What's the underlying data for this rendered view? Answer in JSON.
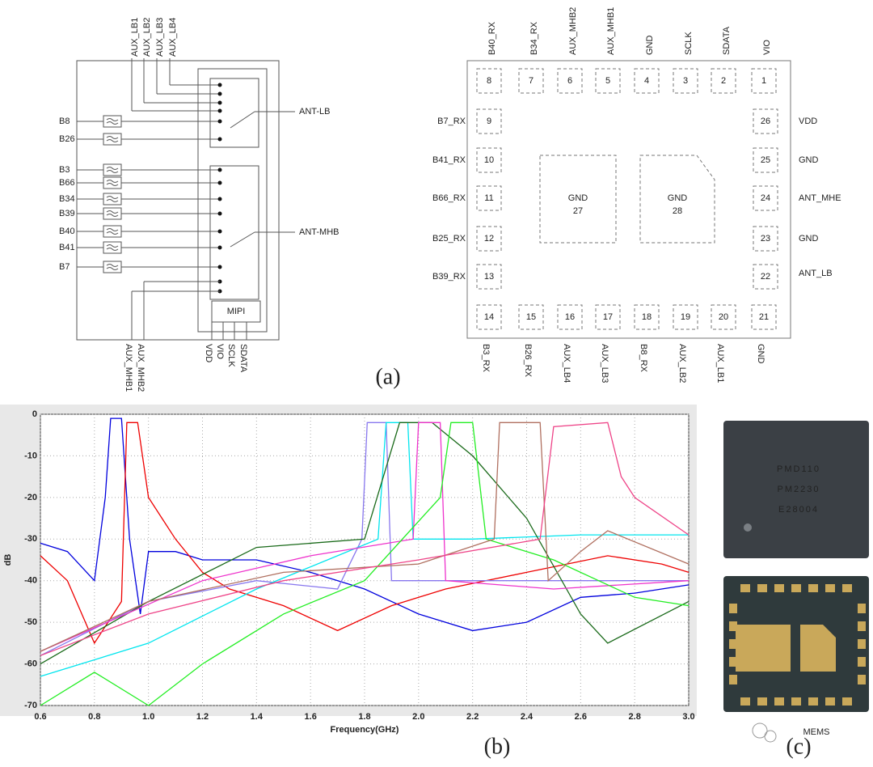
{
  "figure_a": {
    "block": {
      "top_labels": [
        "AUX_LB1",
        "AUX_LB2",
        "AUX_LB3",
        "AUX_LB4"
      ],
      "left_labels": [
        "B8",
        "B26",
        "B3",
        "B66",
        "B34",
        "B39",
        "B40",
        "B41",
        "B7"
      ],
      "right_labels": [
        "ANT-LB",
        "ANT-MHB"
      ],
      "controller": "MIPI",
      "bottom_labels": [
        "AUX_MHB1",
        "AUX_MHB2",
        "VDD",
        "VIO",
        "SCLK",
        "SDATA"
      ]
    },
    "pinout": {
      "top": [
        {
          "pin": 8,
          "label": "B40_RX"
        },
        {
          "pin": 7,
          "label": "B34_RX"
        },
        {
          "pin": 6,
          "label": "AUX_MHB2"
        },
        {
          "pin": 5,
          "label": "AUX_MHB1"
        },
        {
          "pin": 4,
          "label": "GND"
        },
        {
          "pin": 3,
          "label": "SCLK"
        },
        {
          "pin": 2,
          "label": "SDATA"
        },
        {
          "pin": 1,
          "label": "VIO"
        }
      ],
      "left": [
        {
          "pin": 9,
          "label": "B7_RX"
        },
        {
          "pin": 10,
          "label": "B41_RX"
        },
        {
          "pin": 11,
          "label": "B66_RX"
        },
        {
          "pin": 12,
          "label": "B25_RX"
        },
        {
          "pin": 13,
          "label": "B39_RX"
        }
      ],
      "right": [
        {
          "pin": 26,
          "label": "VDD"
        },
        {
          "pin": 25,
          "label": "GND"
        },
        {
          "pin": 24,
          "label": "ANT_MHE"
        },
        {
          "pin": 23,
          "label": "GND"
        },
        {
          "pin": 22,
          "label": "ANT_LB"
        }
      ],
      "bottom": [
        {
          "pin": 14,
          "label": "B3_RX"
        },
        {
          "pin": 15,
          "label": "B26_RX"
        },
        {
          "pin": 16,
          "label": "AUX_LB4"
        },
        {
          "pin": 17,
          "label": "AUX_LB3"
        },
        {
          "pin": 18,
          "label": "B8_RX"
        },
        {
          "pin": 19,
          "label": "AUX_LB2"
        },
        {
          "pin": 20,
          "label": "AUX_LB1"
        },
        {
          "pin": 21,
          "label": "GND"
        }
      ],
      "center": [
        {
          "label": "GND",
          "pin": 27
        },
        {
          "label": "GND",
          "pin": 28
        }
      ]
    }
  },
  "chart_data": {
    "type": "line",
    "xlabel": "Frequency(GHz)",
    "ylabel": "dB",
    "xlim": [
      0.6,
      3.0
    ],
    "ylim": [
      -70,
      0
    ],
    "xticks": [
      0.6,
      0.8,
      {
        "value": 1,
        "label": "1.0"
      },
      1.2,
      1.4,
      1.6,
      1.8,
      {
        "value": 2,
        "label": "2.0"
      },
      2.2,
      2.4,
      2.6,
      2.8,
      {
        "value": 3,
        "label": "3.0"
      }
    ],
    "yticks": [
      0,
      -10,
      -20,
      -30,
      -40,
      -50,
      -60,
      -70
    ],
    "grid": true,
    "series": [
      {
        "color": "#0000dd",
        "x": [
          0.6,
          0.7,
          0.8,
          0.84,
          0.86,
          0.9,
          0.93,
          0.97,
          1.0,
          1.1,
          1.2,
          1.4,
          1.6,
          1.8,
          2.0,
          2.2,
          2.4,
          2.6,
          2.8,
          3.0
        ],
        "values": [
          -31,
          -33,
          -40,
          -20,
          -1,
          -1,
          -30,
          -48,
          -33,
          -33,
          -35,
          -35,
          -38,
          -42,
          -48,
          -52,
          -50,
          -44,
          -43,
          -41
        ]
      },
      {
        "color": "#ee0000",
        "x": [
          0.6,
          0.7,
          0.8,
          0.9,
          0.92,
          0.96,
          1.0,
          1.05,
          1.1,
          1.2,
          1.3,
          1.5,
          1.7,
          1.9,
          2.1,
          2.4,
          2.7,
          2.9,
          3.0
        ],
        "values": [
          -34,
          -40,
          -55,
          -45,
          -2,
          -2,
          -20,
          -25,
          -30,
          -38,
          -42,
          -46,
          -52,
          -46,
          -42,
          -38,
          -34,
          -36,
          -38
        ]
      },
      {
        "color": "#8877ee",
        "x": [
          0.6,
          1.0,
          1.4,
          1.7,
          1.79,
          1.81,
          1.88,
          1.9,
          2.0,
          2.4,
          3.0
        ],
        "values": [
          -58,
          -45,
          -40,
          -42,
          -30,
          -2,
          -2,
          -40,
          -40,
          -40,
          -40
        ]
      },
      {
        "color": "#00e5ee",
        "x": [
          0.6,
          1.0,
          1.4,
          1.7,
          1.85,
          1.88,
          1.96,
          1.98,
          2.2,
          2.6,
          3.0
        ],
        "values": [
          -63,
          -55,
          -42,
          -34,
          -30,
          -2,
          -2,
          -30,
          -30,
          -29,
          -29
        ]
      },
      {
        "color": "#1a6a1a",
        "x": [
          0.6,
          1.0,
          1.4,
          1.8,
          1.93,
          2.05,
          2.2,
          2.4,
          2.6,
          2.7,
          3.0
        ],
        "values": [
          -60,
          -45,
          -32,
          -30,
          -2,
          -2,
          -10,
          -25,
          -48,
          -55,
          -45
        ]
      },
      {
        "color": "#ee33cc",
        "x": [
          0.6,
          1.2,
          1.6,
          1.98,
          2.0,
          2.08,
          2.1,
          2.5,
          3.0
        ],
        "values": [
          -57,
          -40,
          -34,
          -30,
          -2,
          -2,
          -40,
          -42,
          -40
        ]
      },
      {
        "color": "#22ee22",
        "x": [
          0.6,
          0.8,
          1.0,
          1.2,
          1.5,
          1.8,
          2.08,
          2.12,
          2.2,
          2.25,
          2.5,
          2.8,
          3.0
        ],
        "values": [
          -70,
          -62,
          -70,
          -60,
          -48,
          -40,
          -20,
          -2,
          -2,
          -30,
          -35,
          -44,
          -46
        ]
      },
      {
        "color": "#b07060",
        "x": [
          0.6,
          1.0,
          1.5,
          2.0,
          2.28,
          2.3,
          2.45,
          2.48,
          2.6,
          2.7,
          3.0
        ],
        "values": [
          -57,
          -45,
          -38,
          -36,
          -30,
          -2,
          -2,
          -40,
          -33,
          -28,
          -36
        ]
      },
      {
        "color": "#ee4488",
        "x": [
          0.6,
          1.0,
          1.5,
          2.0,
          2.45,
          2.5,
          2.7,
          2.75,
          2.8,
          3.0
        ],
        "values": [
          -58,
          -48,
          -40,
          -35,
          -30,
          -3,
          -2,
          -15,
          -20,
          -29
        ]
      }
    ]
  },
  "photo": {
    "marking": [
      "PMD110",
      "PM2230",
      "E28004"
    ],
    "watermark": "MEMS"
  },
  "captions": {
    "a": "(a)",
    "b": "(b)",
    "c": "(c)"
  }
}
